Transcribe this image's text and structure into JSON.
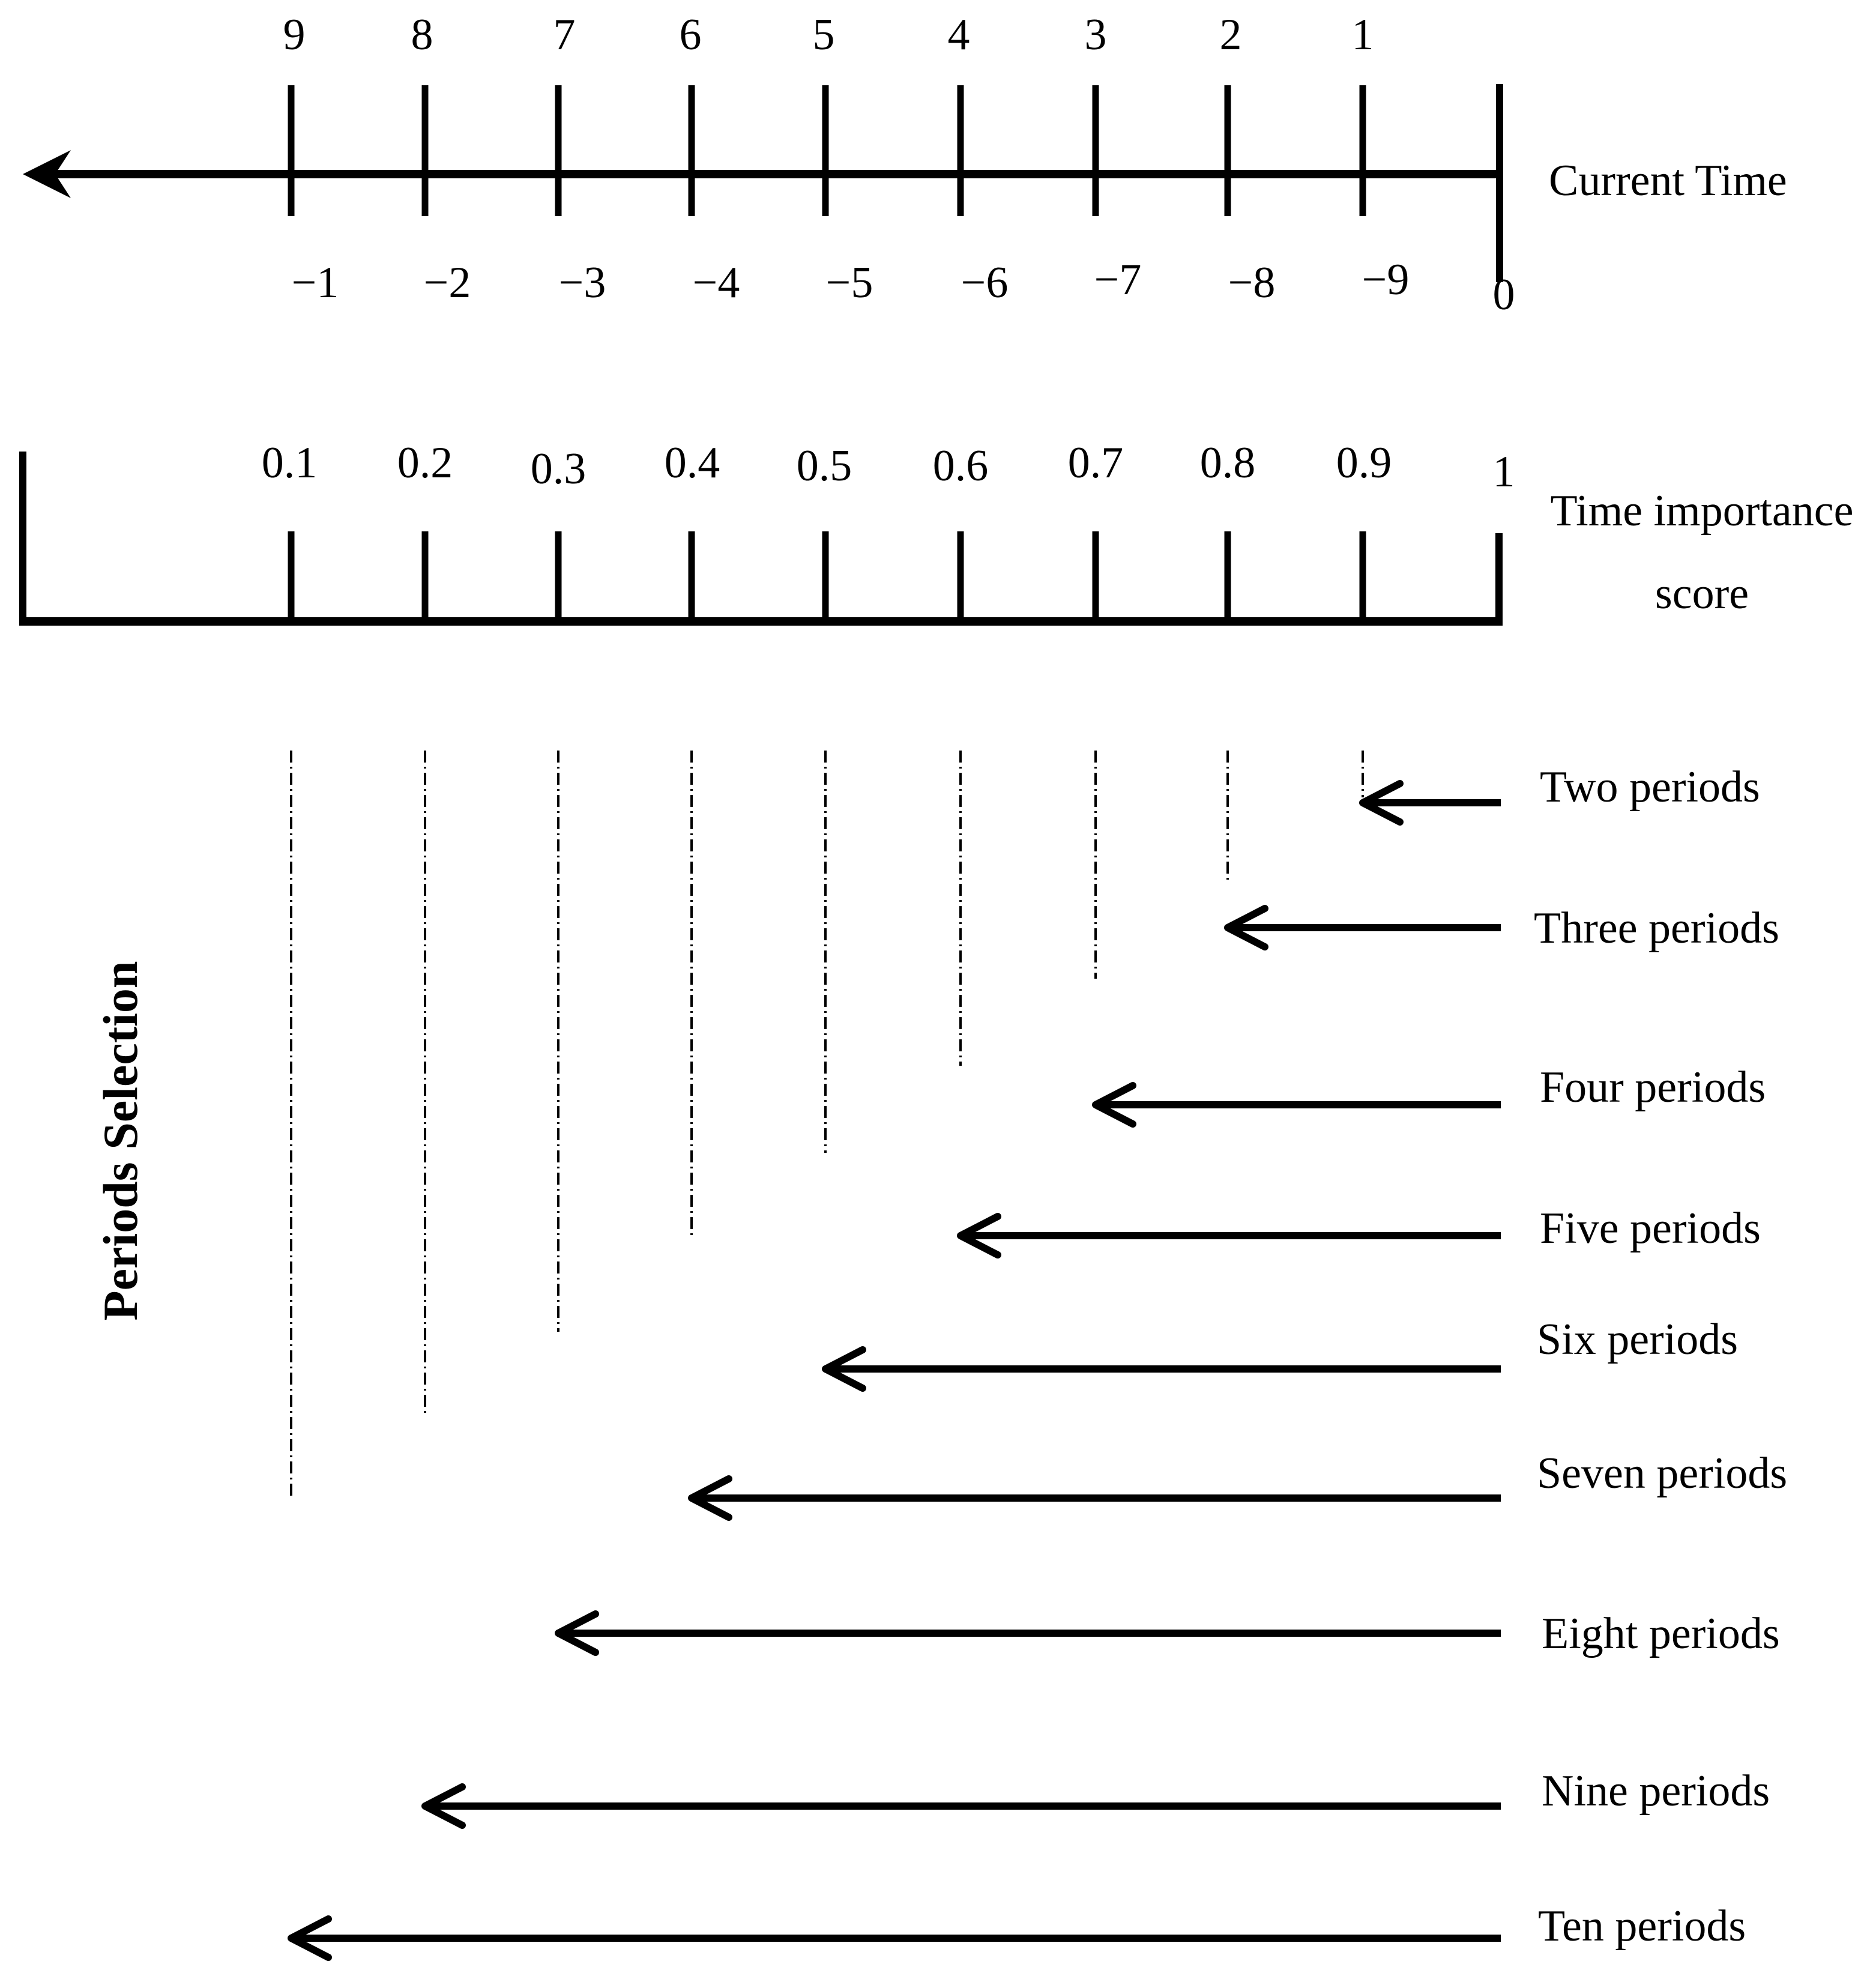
{
  "timeline": {
    "current_time_label": "Current Time",
    "period_count_labels": [
      "9",
      "8",
      "7",
      "6",
      "5",
      "4",
      "3",
      "2",
      "1"
    ],
    "time_offset_labels": [
      "−1",
      "−2",
      "−3",
      "−4",
      "−5",
      "−6",
      "−7",
      "−8",
      "−9",
      "0"
    ]
  },
  "score_scale": {
    "title_line1": "Time importance",
    "title_line2": "score",
    "score_labels": [
      "0.1",
      "0.2",
      "0.3",
      "0.4",
      "0.5",
      "0.6",
      "0.7",
      "0.8",
      "0.9",
      "1"
    ]
  },
  "selection": {
    "title": "Periods Selection",
    "period_options": [
      {
        "label": "Two periods",
        "periods": 2,
        "start_score": 0.9
      },
      {
        "label": "Three periods",
        "periods": 3,
        "start_score": 0.8
      },
      {
        "label": "Four periods",
        "periods": 4,
        "start_score": 0.7
      },
      {
        "label": "Five periods",
        "periods": 5,
        "start_score": 0.6
      },
      {
        "label": "Six periods",
        "periods": 6,
        "start_score": 0.5
      },
      {
        "label": "Seven periods",
        "periods": 7,
        "start_score": 0.4
      },
      {
        "label": "Eight periods",
        "periods": 8,
        "start_score": 0.3
      },
      {
        "label": "Nine periods",
        "periods": 9,
        "start_score": 0.2
      },
      {
        "label": "Ten periods",
        "periods": 10,
        "start_score": 0.1
      }
    ]
  },
  "colors": {
    "ink": "#000000",
    "background": "#ffffff"
  }
}
